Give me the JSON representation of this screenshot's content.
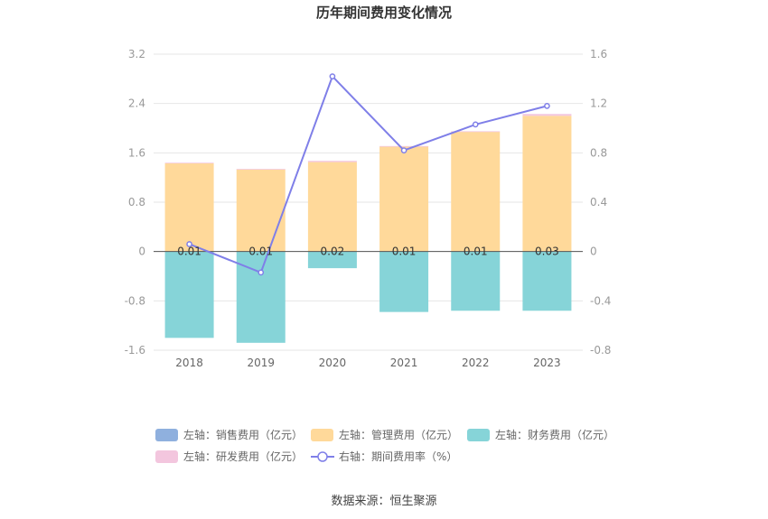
{
  "title": "历年期间费用变化情况",
  "source": "数据来源：恒生聚源",
  "colors": {
    "sales": "#8fb0de",
    "admin": "#ffd99a",
    "finance": "#86d4d8",
    "rnd": "#f3c6de",
    "rate": "#7f7fe8"
  },
  "chart_data": {
    "type": "bar",
    "categories": [
      "2018",
      "2019",
      "2020",
      "2021",
      "2022",
      "2023"
    ],
    "left_axis": {
      "ylim": [
        -1.6,
        3.2
      ],
      "ticks": [
        "3.2",
        "2.4",
        "1.6",
        "0.8",
        "0",
        "-0.8",
        "-1.6"
      ]
    },
    "right_axis": {
      "ylim": [
        -0.8,
        1.6
      ],
      "ticks": [
        "1.6",
        "1.2",
        "0.8",
        "0.4",
        "0",
        "-0.4",
        "-0.8"
      ]
    },
    "series": [
      {
        "name": "左轴：销售费用（亿元）",
        "key": "sales",
        "axis": "left",
        "values": [
          0,
          0,
          0,
          0,
          0,
          0
        ]
      },
      {
        "name": "左轴：管理费用（亿元）",
        "key": "admin",
        "axis": "left",
        "values": [
          1.43,
          1.33,
          1.45,
          1.7,
          1.94,
          2.2
        ]
      },
      {
        "name": "左轴：财务费用（亿元）",
        "key": "finance",
        "axis": "left",
        "values": [
          -1.4,
          -1.48,
          -0.27,
          -0.98,
          -0.96,
          -0.96
        ]
      },
      {
        "name": "左轴：研发费用（亿元）",
        "key": "rnd",
        "axis": "left",
        "values": [
          0.01,
          0.01,
          0.02,
          0.01,
          0.01,
          0.03
        ]
      },
      {
        "name": "右轴：期间费用率（%）",
        "key": "rate",
        "axis": "right",
        "type": "line",
        "values": [
          0.06,
          -0.17,
          1.42,
          0.82,
          1.03,
          1.18
        ]
      }
    ],
    "data_labels": [
      "0.01",
      "0.01",
      "0.02",
      "0.01",
      "0.01",
      "0.03"
    ],
    "grid": true,
    "legend_position": "bottom"
  }
}
